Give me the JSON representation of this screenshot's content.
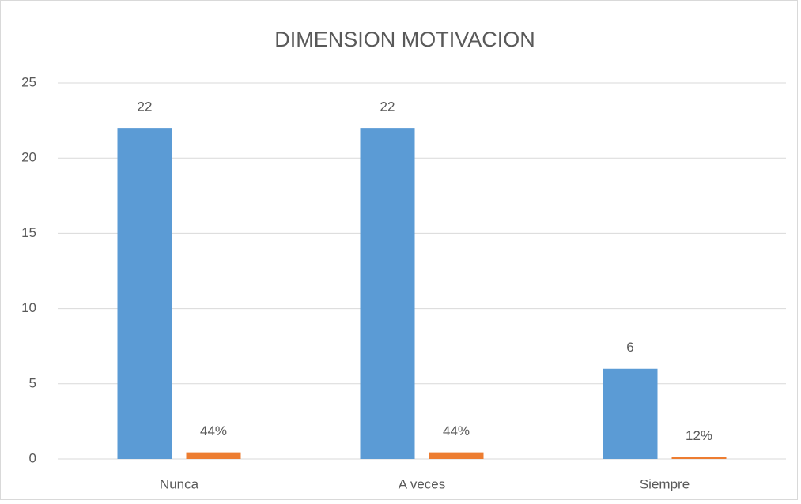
{
  "chart_data": {
    "type": "bar",
    "title": "DIMENSION MOTIVACION",
    "categories": [
      "Nunca",
      "A veces",
      "Siempre"
    ],
    "series": [
      {
        "color": "#5b9bd5",
        "values": [
          22,
          22,
          6
        ]
      },
      {
        "color": "#ed7d31",
        "values": [
          0.44,
          0.44,
          0.12
        ],
        "value_labels": [
          "44%",
          "44%",
          "12%"
        ]
      }
    ],
    "ylim": [
      0,
      25
    ],
    "yticks": [
      0,
      5,
      10,
      15,
      20,
      25
    ],
    "grid": true
  }
}
